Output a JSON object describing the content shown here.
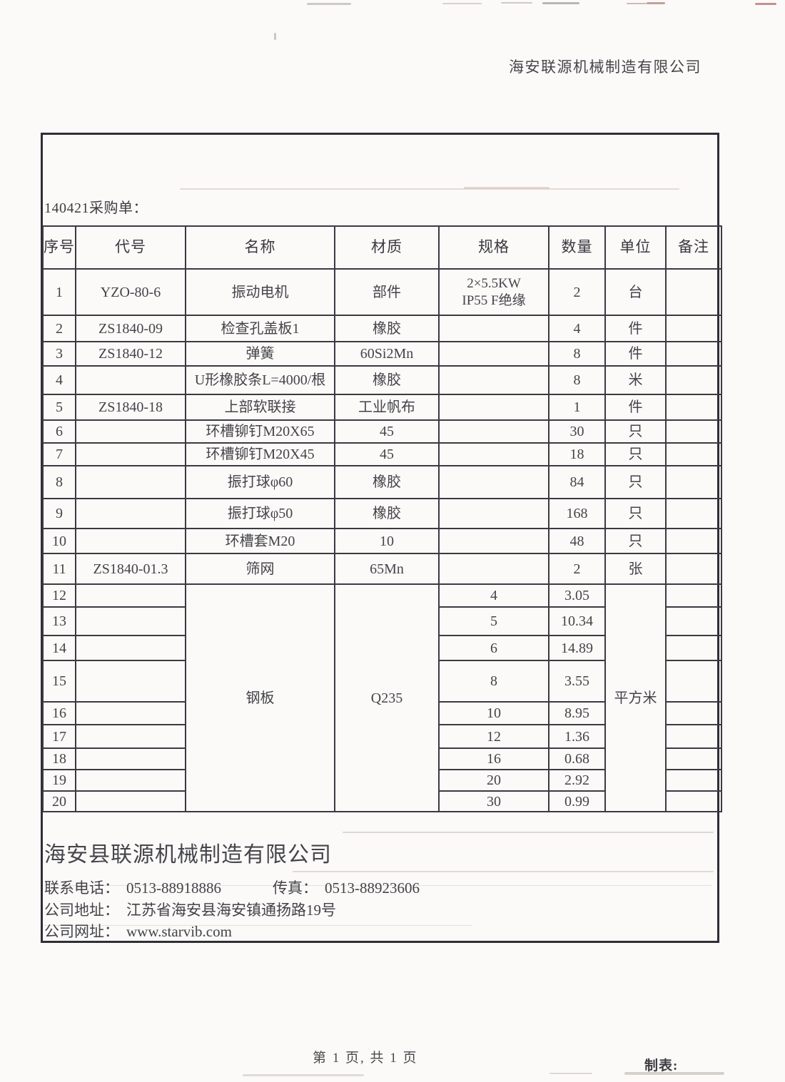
{
  "page_header": {
    "company": "海安联源机械制造有限公司"
  },
  "order": {
    "label": "140421采购单："
  },
  "table": {
    "headers": [
      "序号",
      "代号",
      "名称",
      "材质",
      "规格",
      "数量",
      "单位",
      "备注"
    ],
    "rows": [
      {
        "no": "1",
        "code": "YZO-80-6",
        "name": "振动电机",
        "material": "部件",
        "spec": "2×5.5KW\nIP55 F绝缘",
        "qty": "2",
        "unit": "台",
        "remark": ""
      },
      {
        "no": "2",
        "code": "ZS1840-09",
        "name": "检查孔盖板1",
        "material": "橡胶",
        "spec": "",
        "qty": "4",
        "unit": "件",
        "remark": ""
      },
      {
        "no": "3",
        "code": "ZS1840-12",
        "name": "弹簧",
        "material": "60Si2Mn",
        "spec": "",
        "qty": "8",
        "unit": "件",
        "remark": ""
      },
      {
        "no": "4",
        "code": "",
        "name": "U形橡胶条L=4000/根",
        "material": "橡胶",
        "spec": "",
        "qty": "8",
        "unit": "米",
        "remark": "",
        "merge_code_name": true
      },
      {
        "no": "5",
        "code": "ZS1840-18",
        "name": "上部软联接",
        "material": "工业帆布",
        "spec": "",
        "qty": "1",
        "unit": "件",
        "remark": ""
      },
      {
        "no": "6",
        "code": "",
        "name": "环槽铆钉M20X65",
        "material": "45",
        "spec": "",
        "qty": "30",
        "unit": "只",
        "remark": ""
      },
      {
        "no": "7",
        "code": "",
        "name": "环槽铆钉M20X45",
        "material": "45",
        "spec": "",
        "qty": "18",
        "unit": "只",
        "remark": ""
      },
      {
        "no": "8",
        "code": "",
        "name": "振打球φ60",
        "material": "橡胶",
        "spec": "",
        "qty": "84",
        "unit": "只",
        "remark": ""
      },
      {
        "no": "9",
        "code": "",
        "name": "振打球φ50",
        "material": "橡胶",
        "spec": "",
        "qty": "168",
        "unit": "只",
        "remark": ""
      },
      {
        "no": "10",
        "code": "",
        "name": "环槽套M20",
        "material": "10",
        "spec": "",
        "qty": "48",
        "unit": "只",
        "remark": ""
      },
      {
        "no": "11",
        "code": "ZS1840-01.3",
        "name": "筛网",
        "material": "65Mn",
        "spec": "",
        "qty": "2",
        "unit": "张",
        "remark": ""
      }
    ],
    "steel": {
      "name": "钢板",
      "material": "Q235",
      "unit": "平方米"
    },
    "steel_rows": [
      {
        "no": "12",
        "spec": "4",
        "qty": "3.05"
      },
      {
        "no": "13",
        "spec": "5",
        "qty": "10.34"
      },
      {
        "no": "14",
        "spec": "6",
        "qty": "14.89"
      },
      {
        "no": "15",
        "spec": "8",
        "qty": "3.55"
      },
      {
        "no": "16",
        "spec": "10",
        "qty": "8.95"
      },
      {
        "no": "17",
        "spec": "12",
        "qty": "1.36"
      },
      {
        "no": "18",
        "spec": "16",
        "qty": "0.68"
      },
      {
        "no": "19",
        "spec": "20",
        "qty": "2.92"
      },
      {
        "no": "20",
        "spec": "30",
        "qty": "0.99"
      }
    ]
  },
  "company": {
    "name": "海安县联源机械制造有限公司",
    "phone_label": "联系电话：",
    "phone": "0513-88918886",
    "fax_label": "传真：",
    "fax": "0513-88923606",
    "address_label": "公司地址：",
    "address": "江苏省海安县海安镇通扬路19号",
    "website_label": "公司网址：",
    "website": "www.starvib.com"
  },
  "footer": {
    "page_info": "第 1 页, 共 1 页",
    "maker_label": "制表:"
  }
}
